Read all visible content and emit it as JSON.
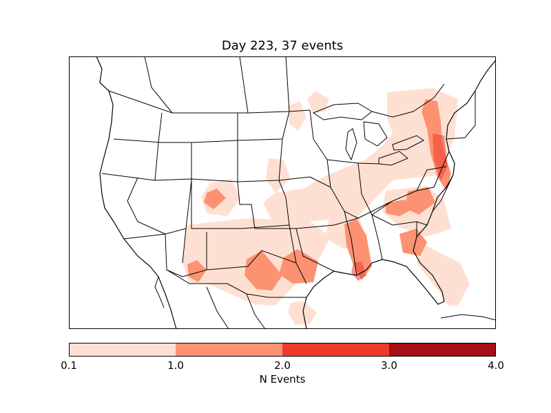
{
  "title": "Day 223, 37 events",
  "colorbar": {
    "label": "N Events",
    "ticks": [
      "0.1",
      "1.0",
      "2.0",
      "3.0",
      "4.0"
    ],
    "bins": [
      {
        "range": [
          0.1,
          1.0
        ],
        "color": "#fee0d2"
      },
      {
        "range": [
          1.0,
          2.0
        ],
        "color": "#fc9272"
      },
      {
        "range": [
          2.0,
          3.0
        ],
        "color": "#ef3b2c"
      },
      {
        "range": [
          3.0,
          4.0
        ],
        "color": "#a50f15"
      }
    ]
  },
  "colors": {
    "light": "#fee0d2",
    "medium": "#fc9272",
    "strong": "#ef3b2c",
    "darkest": "#a50f15",
    "boundary": "#000000"
  }
}
